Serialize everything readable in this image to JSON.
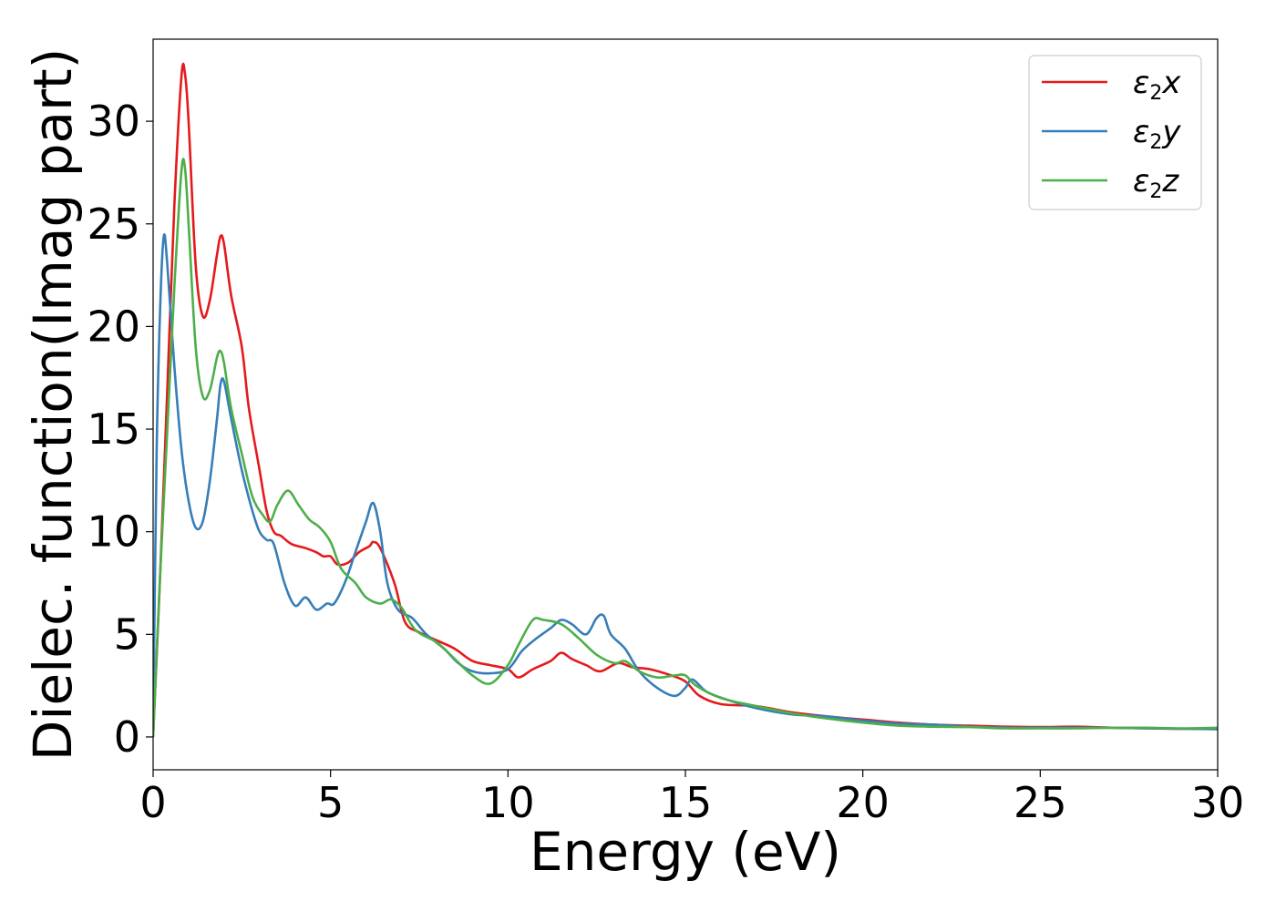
{
  "chart_data": {
    "type": "line",
    "xlabel": "Energy (eV)",
    "ylabel": "Dielec. function(Imag part)",
    "xlim": [
      0,
      30
    ],
    "ylim": [
      -1.6,
      34
    ],
    "xticks": [
      0,
      5,
      10,
      15,
      20,
      25,
      30
    ],
    "yticks": [
      0,
      5,
      10,
      15,
      20,
      25,
      30
    ],
    "grid": false,
    "legend_position": "top-right",
    "series": [
      {
        "name": "ε2x",
        "legend": {
          "base": "ε",
          "sub": "2",
          "var": "x"
        },
        "color": "#e41a1c",
        "points": [
          [
            0,
            0
          ],
          [
            0.2,
            8
          ],
          [
            0.4,
            17
          ],
          [
            0.6,
            26
          ],
          [
            0.8,
            32.2
          ],
          [
            0.9,
            32.3
          ],
          [
            1.0,
            30
          ],
          [
            1.2,
            23
          ],
          [
            1.4,
            20.5
          ],
          [
            1.6,
            21.3
          ],
          [
            1.8,
            23.5
          ],
          [
            1.9,
            24.4
          ],
          [
            2.0,
            24
          ],
          [
            2.2,
            21.5
          ],
          [
            2.5,
            19
          ],
          [
            2.7,
            16
          ],
          [
            3.0,
            13
          ],
          [
            3.2,
            11
          ],
          [
            3.4,
            10
          ],
          [
            3.6,
            9.8
          ],
          [
            3.9,
            9.4
          ],
          [
            4.3,
            9.2
          ],
          [
            4.6,
            9.0
          ],
          [
            4.8,
            8.8
          ],
          [
            5.0,
            8.8
          ],
          [
            5.2,
            8.4
          ],
          [
            5.5,
            8.5
          ],
          [
            5.8,
            9.0
          ],
          [
            6.1,
            9.3
          ],
          [
            6.2,
            9.5
          ],
          [
            6.4,
            9.2
          ],
          [
            6.8,
            7.5
          ],
          [
            7.1,
            5.6
          ],
          [
            7.5,
            5.1
          ],
          [
            8.0,
            4.7
          ],
          [
            8.5,
            4.3
          ],
          [
            9.0,
            3.7
          ],
          [
            9.5,
            3.5
          ],
          [
            10.0,
            3.3
          ],
          [
            10.3,
            2.9
          ],
          [
            10.7,
            3.3
          ],
          [
            11.2,
            3.7
          ],
          [
            11.5,
            4.1
          ],
          [
            11.8,
            3.8
          ],
          [
            12.2,
            3.5
          ],
          [
            12.6,
            3.2
          ],
          [
            13.1,
            3.6
          ],
          [
            13.5,
            3.4
          ],
          [
            14.0,
            3.3
          ],
          [
            14.6,
            3.0
          ],
          [
            15.0,
            2.7
          ],
          [
            15.4,
            2.0
          ],
          [
            16.0,
            1.6
          ],
          [
            17.0,
            1.5
          ],
          [
            18.0,
            1.2
          ],
          [
            19.0,
            1.0
          ],
          [
            20.0,
            0.85
          ],
          [
            21.0,
            0.7
          ],
          [
            22.0,
            0.6
          ],
          [
            23.0,
            0.55
          ],
          [
            24.0,
            0.5
          ],
          [
            25.0,
            0.48
          ],
          [
            26.0,
            0.5
          ],
          [
            27.0,
            0.45
          ],
          [
            28.0,
            0.42
          ],
          [
            29.0,
            0.4
          ],
          [
            30.0,
            0.4
          ]
        ]
      },
      {
        "name": "ε2y",
        "legend": {
          "base": "ε",
          "sub": "2",
          "var": "y"
        },
        "color": "#377eb8",
        "points": [
          [
            0,
            0
          ],
          [
            0.1,
            14
          ],
          [
            0.2,
            21
          ],
          [
            0.3,
            24.4
          ],
          [
            0.4,
            23
          ],
          [
            0.6,
            18
          ],
          [
            0.8,
            14
          ],
          [
            1.0,
            11.5
          ],
          [
            1.2,
            10.2
          ],
          [
            1.4,
            10.5
          ],
          [
            1.6,
            12.5
          ],
          [
            1.8,
            15.5
          ],
          [
            1.9,
            17.2
          ],
          [
            2.0,
            17.3
          ],
          [
            2.2,
            15.5
          ],
          [
            2.5,
            13
          ],
          [
            2.8,
            11
          ],
          [
            3.0,
            10
          ],
          [
            3.2,
            9.6
          ],
          [
            3.4,
            9.4
          ],
          [
            3.7,
            7.5
          ],
          [
            4.0,
            6.4
          ],
          [
            4.3,
            6.8
          ],
          [
            4.6,
            6.2
          ],
          [
            4.9,
            6.5
          ],
          [
            5.1,
            6.5
          ],
          [
            5.4,
            7.5
          ],
          [
            5.7,
            9.0
          ],
          [
            6.0,
            10.5
          ],
          [
            6.2,
            11.4
          ],
          [
            6.4,
            10
          ],
          [
            6.6,
            7.5
          ],
          [
            6.9,
            6.2
          ],
          [
            7.3,
            5.8
          ],
          [
            7.7,
            5.0
          ],
          [
            8.2,
            4.3
          ],
          [
            8.6,
            3.6
          ],
          [
            9.0,
            3.2
          ],
          [
            9.5,
            3.1
          ],
          [
            10.0,
            3.3
          ],
          [
            10.4,
            4.2
          ],
          [
            10.8,
            4.8
          ],
          [
            11.2,
            5.3
          ],
          [
            11.5,
            5.7
          ],
          [
            11.8,
            5.5
          ],
          [
            12.2,
            5.0
          ],
          [
            12.5,
            5.8
          ],
          [
            12.7,
            5.9
          ],
          [
            12.9,
            5.0
          ],
          [
            13.3,
            4.3
          ],
          [
            13.7,
            3.2
          ],
          [
            14.2,
            2.4
          ],
          [
            14.7,
            2.0
          ],
          [
            15.0,
            2.4
          ],
          [
            15.2,
            2.8
          ],
          [
            15.6,
            2.2
          ],
          [
            16.2,
            1.8
          ],
          [
            17.0,
            1.4
          ],
          [
            18.0,
            1.1
          ],
          [
            19.0,
            1.0
          ],
          [
            20.0,
            0.8
          ],
          [
            21.0,
            0.65
          ],
          [
            22.0,
            0.6
          ],
          [
            23.0,
            0.5
          ],
          [
            24.0,
            0.45
          ],
          [
            25.0,
            0.45
          ],
          [
            26.0,
            0.45
          ],
          [
            27.0,
            0.45
          ],
          [
            28.0,
            0.42
          ],
          [
            29.0,
            0.4
          ],
          [
            30.0,
            0.38
          ]
        ]
      },
      {
        "name": "ε2z",
        "legend": {
          "base": "ε",
          "sub": "2",
          "var": "z"
        },
        "color": "#4daf4a",
        "points": [
          [
            0,
            0
          ],
          [
            0.2,
            8
          ],
          [
            0.4,
            15
          ],
          [
            0.6,
            22
          ],
          [
            0.8,
            27.6
          ],
          [
            0.9,
            27.7
          ],
          [
            1.0,
            25
          ],
          [
            1.2,
            19
          ],
          [
            1.4,
            16.6
          ],
          [
            1.6,
            16.9
          ],
          [
            1.8,
            18.5
          ],
          [
            1.9,
            18.8
          ],
          [
            2.0,
            18.2
          ],
          [
            2.2,
            16.0
          ],
          [
            2.5,
            13.8
          ],
          [
            2.8,
            11.7
          ],
          [
            3.1,
            10.8
          ],
          [
            3.3,
            10.5
          ],
          [
            3.5,
            11.3
          ],
          [
            3.8,
            12.0
          ],
          [
            4.1,
            11.3
          ],
          [
            4.4,
            10.6
          ],
          [
            4.7,
            10.2
          ],
          [
            5.0,
            9.5
          ],
          [
            5.3,
            8.2
          ],
          [
            5.7,
            7.5
          ],
          [
            6.0,
            6.8
          ],
          [
            6.4,
            6.5
          ],
          [
            6.7,
            6.7
          ],
          [
            7.0,
            6.3
          ],
          [
            7.4,
            5.2
          ],
          [
            8.0,
            4.6
          ],
          [
            8.5,
            3.8
          ],
          [
            9.0,
            3.0
          ],
          [
            9.5,
            2.6
          ],
          [
            10.0,
            3.5
          ],
          [
            10.3,
            4.5
          ],
          [
            10.7,
            5.7
          ],
          [
            11.0,
            5.7
          ],
          [
            11.5,
            5.5
          ],
          [
            12.0,
            4.8
          ],
          [
            12.5,
            4.0
          ],
          [
            13.0,
            3.6
          ],
          [
            13.3,
            3.7
          ],
          [
            13.7,
            3.2
          ],
          [
            14.2,
            2.9
          ],
          [
            14.7,
            3.0
          ],
          [
            15.0,
            3.0
          ],
          [
            15.3,
            2.5
          ],
          [
            16.0,
            1.9
          ],
          [
            17.0,
            1.5
          ],
          [
            18.0,
            1.15
          ],
          [
            19.0,
            0.9
          ],
          [
            20.0,
            0.7
          ],
          [
            21.0,
            0.55
          ],
          [
            22.0,
            0.5
          ],
          [
            23.0,
            0.48
          ],
          [
            24.0,
            0.42
          ],
          [
            25.0,
            0.42
          ],
          [
            26.0,
            0.42
          ],
          [
            27.0,
            0.45
          ],
          [
            28.0,
            0.45
          ],
          [
            29.0,
            0.42
          ],
          [
            30.0,
            0.45
          ]
        ]
      }
    ]
  }
}
